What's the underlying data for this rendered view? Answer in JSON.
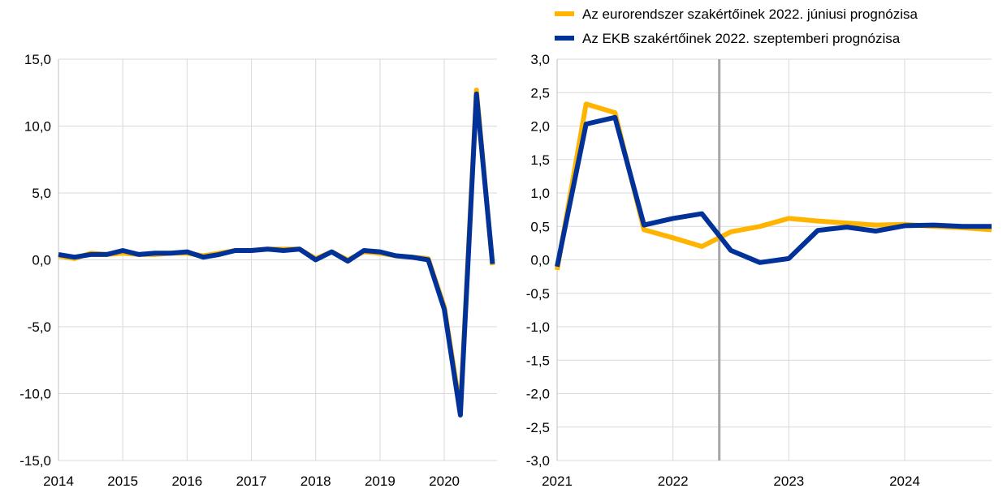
{
  "chart_data": [
    {
      "type": "line",
      "title": "",
      "xlabel": "",
      "ylabel": "",
      "ylim": [
        -15,
        15
      ],
      "xlim": [
        2014,
        2020.75
      ],
      "y_ticks": [
        15,
        10,
        5,
        0,
        -5,
        -10,
        -15
      ],
      "y_tick_labels": [
        "15,0",
        "10,0",
        "5,0",
        "0,0",
        "-5,0",
        "-10,0",
        "-15,0"
      ],
      "x_ticks": [
        2014,
        2015,
        2016,
        2017,
        2018,
        2019,
        2020
      ],
      "x_tick_labels": [
        "2014",
        "2015",
        "2016",
        "2017",
        "2018",
        "2019",
        "2020"
      ],
      "grid": true,
      "x": [
        2014,
        2014.25,
        2014.5,
        2014.75,
        2015,
        2015.25,
        2015.5,
        2015.75,
        2016,
        2016.25,
        2016.5,
        2016.75,
        2017,
        2017.25,
        2017.5,
        2017.75,
        2018,
        2018.25,
        2018.5,
        2018.75,
        2019,
        2019.25,
        2019.5,
        2019.75,
        2020,
        2020.25,
        2020.5,
        2020.75
      ],
      "series": [
        {
          "key": "june",
          "color": "#FFB400",
          "values": [
            0.3,
            0.1,
            0.5,
            0.4,
            0.5,
            0.4,
            0.4,
            0.5,
            0.5,
            0.3,
            0.5,
            0.7,
            0.7,
            0.8,
            0.8,
            0.8,
            0.1,
            0.6,
            0.0,
            0.6,
            0.5,
            0.3,
            0.2,
            0.1,
            -3.5,
            -11.2,
            12.7,
            -0.4
          ]
        },
        {
          "key": "september",
          "color": "#003299",
          "values": [
            0.4,
            0.2,
            0.4,
            0.4,
            0.7,
            0.4,
            0.5,
            0.5,
            0.6,
            0.2,
            0.4,
            0.7,
            0.7,
            0.8,
            0.7,
            0.8,
            0.0,
            0.6,
            -0.1,
            0.7,
            0.6,
            0.3,
            0.2,
            0.0,
            -3.7,
            -11.6,
            12.4,
            -0.3
          ]
        }
      ]
    },
    {
      "type": "line",
      "title": "",
      "xlabel": "",
      "ylabel": "",
      "ylim": [
        -3,
        3
      ],
      "xlim": [
        2021,
        2024.75
      ],
      "y_ticks": [
        3,
        2.5,
        2,
        1.5,
        1,
        0.5,
        0,
        -0.5,
        -1,
        -1.5,
        -2,
        -2.5,
        -3
      ],
      "y_tick_labels": [
        "3,0",
        "2,5",
        "2,0",
        "1,5",
        "1,0",
        "0,5",
        "0,0",
        "-0,5",
        "-1,0",
        "-1,5",
        "-2,0",
        "-2,5",
        "-3,0"
      ],
      "x_ticks": [
        2021,
        2022,
        2023,
        2024
      ],
      "x_tick_labels": [
        "2021",
        "2022",
        "2023",
        "2024"
      ],
      "grid": true,
      "vertical_marker_x": 2022.4,
      "legend_position": "top",
      "x": [
        2021,
        2021.25,
        2021.5,
        2021.75,
        2022,
        2022.25,
        2022.5,
        2022.75,
        2023,
        2023.25,
        2023.5,
        2023.75,
        2024,
        2024.25,
        2024.5,
        2024.75
      ],
      "series": [
        {
          "name": "Az eurorendszer szakértőinek 2022. júniusi prognózisa",
          "key": "june",
          "color": "#FFB400",
          "values": [
            -0.15,
            2.33,
            2.2,
            0.45,
            0.33,
            0.2,
            0.42,
            0.5,
            0.62,
            0.58,
            0.55,
            0.52,
            0.53,
            0.5,
            0.48,
            0.45
          ]
        },
        {
          "name": "Az EKB szakértőinek 2022. szeptemberi prognózisa",
          "key": "september",
          "color": "#003299",
          "values": [
            -0.1,
            2.03,
            2.13,
            0.52,
            0.62,
            0.69,
            0.14,
            -0.04,
            0.02,
            0.44,
            0.49,
            0.43,
            0.51,
            0.52,
            0.5,
            0.5
          ]
        }
      ]
    }
  ]
}
